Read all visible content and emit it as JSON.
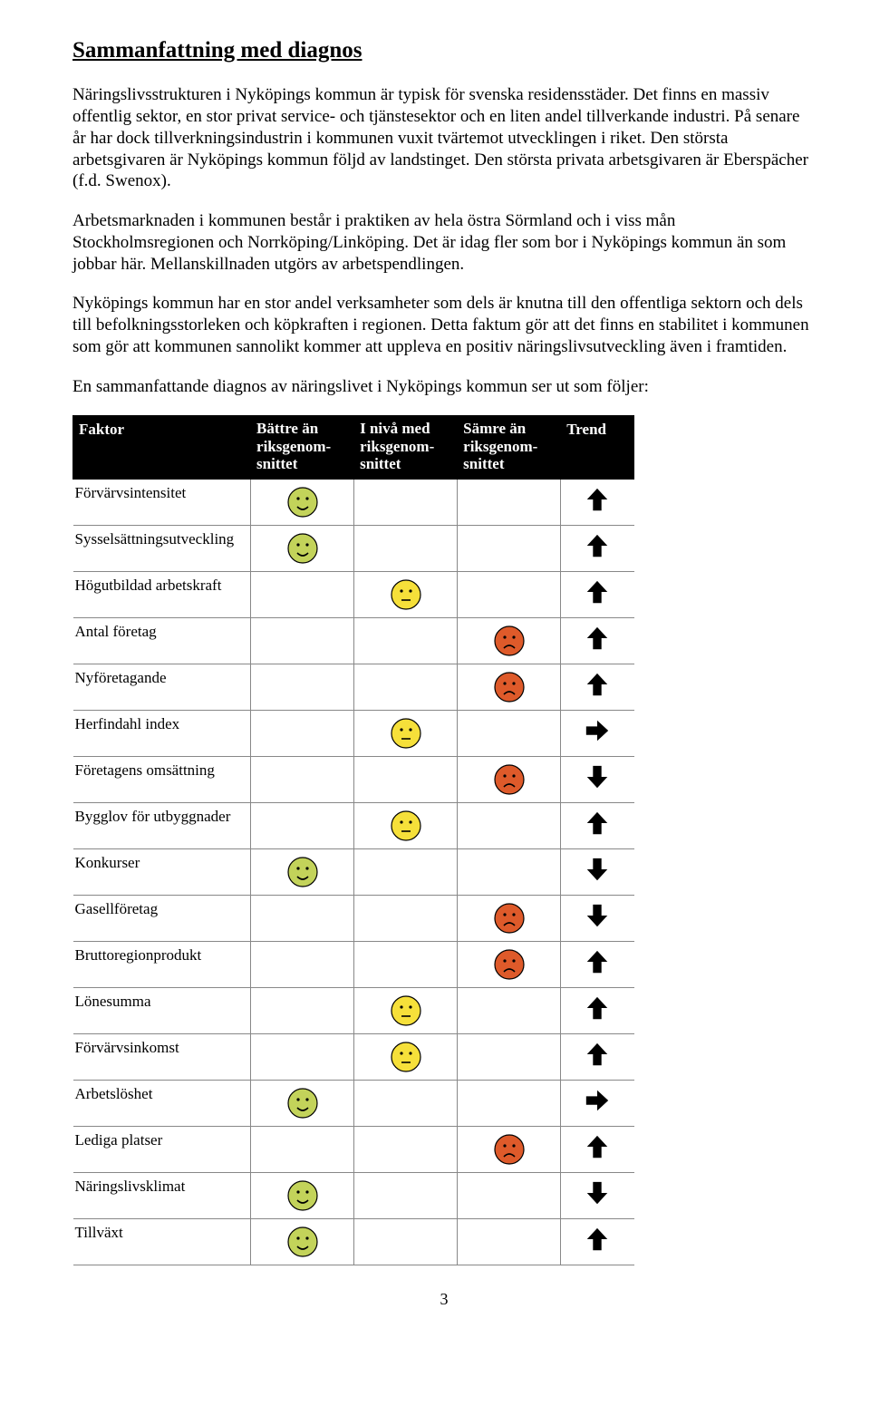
{
  "heading": "Sammanfattning med diagnos",
  "paragraphs": {
    "p1": "Näringslivsstrukturen i Nyköpings kommun är typisk för svenska residensstäder. Det finns en massiv offentlig sektor, en stor privat service- och tjänstesektor och en liten andel tillverkande industri. På senare år har dock tillverkningsindustrin i kommunen vuxit tvärtemot utvecklingen i riket. Den största arbetsgivaren är Nyköpings kommun följd av landstinget. Den största privata arbetsgivaren är Eberspächer (f.d. Swenox).",
    "p2": "Arbetsmarknaden i kommunen består i praktiken av hela östra Sörmland och i viss mån Stockholmsregionen och Norrköping/Linköping. Det är idag fler som bor i Nyköpings kommun än som jobbar här. Mellanskillnaden utgörs av arbetspendlingen.",
    "p3": "Nyköpings kommun har en stor andel verksamheter som dels är knutna till den offentliga sektorn och dels till befolkningsstorleken och köpkraften i regionen. Detta faktum gör att det finns en stabilitet i kommunen som gör att kommunen sannolikt kommer att uppleva en positiv näringslivsutveckling även i framtiden.",
    "p4": "En sammanfattande diagnos av näringslivet i Nyköpings kommun ser ut som följer:"
  },
  "table": {
    "headers": {
      "factor": "Faktor",
      "better": "Bättre än riksgenom-snittet",
      "equal": "I nivå med riksgenom-snittet",
      "worse": "Sämre än riksgenom-snittet",
      "trend": "Trend"
    },
    "face_colors": {
      "better_fill": "#c3d35a",
      "equal_fill": "#f6e03a",
      "worse_fill": "#de5a2a"
    },
    "rows": [
      {
        "label": "Förvärvsintensitet",
        "rating": "better",
        "trend": "up"
      },
      {
        "label": "Sysselsättningsutveckling",
        "rating": "better",
        "trend": "up"
      },
      {
        "label": "Högutbildad arbetskraft",
        "rating": "equal",
        "trend": "up"
      },
      {
        "label": "Antal företag",
        "rating": "worse",
        "trend": "up"
      },
      {
        "label": "Nyföretagande",
        "rating": "worse",
        "trend": "up"
      },
      {
        "label": "Herfindahl index",
        "rating": "equal",
        "trend": "right"
      },
      {
        "label": "Företagens omsättning",
        "rating": "worse",
        "trend": "down"
      },
      {
        "label": "Bygglov för utbyggnader",
        "rating": "equal",
        "trend": "up"
      },
      {
        "label": "Konkurser",
        "rating": "better",
        "trend": "down"
      },
      {
        "label": "Gasellföretag",
        "rating": "worse",
        "trend": "down"
      },
      {
        "label": "Bruttoregionprodukt",
        "rating": "worse",
        "trend": "up"
      },
      {
        "label": "Lönesumma",
        "rating": "equal",
        "trend": "up"
      },
      {
        "label": "Förvärvsinkomst",
        "rating": "equal",
        "trend": "up"
      },
      {
        "label": "Arbetslöshet",
        "rating": "better",
        "trend": "right"
      },
      {
        "label": "Lediga platser",
        "rating": "worse",
        "trend": "up"
      },
      {
        "label": "Näringslivsklimat",
        "rating": "better",
        "trend": "down"
      },
      {
        "label": "Tillväxt",
        "rating": "better",
        "trend": "up"
      }
    ],
    "trend_glyphs": {
      "up": "↑",
      "down": "↓",
      "right": "→"
    }
  },
  "page_number": "3"
}
